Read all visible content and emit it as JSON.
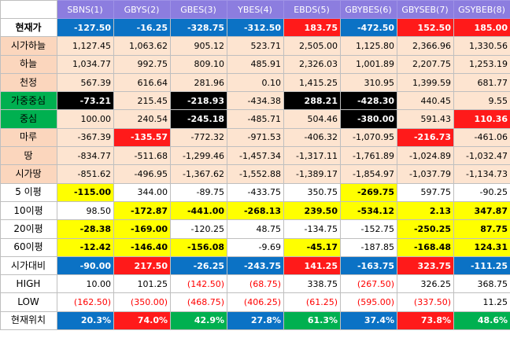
{
  "headers": [
    "SBNS(1)",
    "GBYS(2)",
    "GBES(3)",
    "YBES(4)",
    "EBDS(5)",
    "GBYBES(6)",
    "GBYSEB(7)",
    "GSYBEB(8)"
  ],
  "rows": [
    {
      "label": "현재가",
      "lstyle": "white",
      "lbold": true,
      "cells": [
        [
          "-127.50",
          "blue"
        ],
        [
          "-16.25",
          "blue"
        ],
        [
          "-328.75",
          "blue"
        ],
        [
          "-312.50",
          "blue"
        ],
        [
          "183.75",
          "red"
        ],
        [
          "-472.50",
          "blue"
        ],
        [
          "152.50",
          "red"
        ],
        [
          "185.00",
          "red"
        ]
      ]
    },
    {
      "label": "시가하늘",
      "lstyle": "peach",
      "cells": [
        [
          "1,127.45",
          "peach"
        ],
        [
          "1,063.62",
          "peach"
        ],
        [
          "905.12",
          "peach"
        ],
        [
          "523.71",
          "peach"
        ],
        [
          "2,505.00",
          "peach"
        ],
        [
          "1,125.80",
          "peach"
        ],
        [
          "2,366.96",
          "peach"
        ],
        [
          "1,330.56",
          "peach"
        ]
      ]
    },
    {
      "label": "하늘",
      "lstyle": "peach",
      "cells": [
        [
          "1,034.77",
          "peach"
        ],
        [
          "992.75",
          "peach"
        ],
        [
          "809.10",
          "peach"
        ],
        [
          "485.91",
          "peach"
        ],
        [
          "2,326.03",
          "peach"
        ],
        [
          "1,001.89",
          "peach"
        ],
        [
          "2,207.75",
          "peach"
        ],
        [
          "1,253.19",
          "peach"
        ]
      ]
    },
    {
      "label": "천정",
      "lstyle": "peach",
      "cells": [
        [
          "567.39",
          "peach"
        ],
        [
          "616.64",
          "peach"
        ],
        [
          "281.96",
          "peach"
        ],
        [
          "0.10",
          "peach"
        ],
        [
          "1,415.25",
          "peach"
        ],
        [
          "310.95",
          "peach"
        ],
        [
          "1,399.59",
          "peach"
        ],
        [
          "681.77",
          "peach"
        ]
      ]
    },
    {
      "label": "가중중심",
      "lstyle": "green",
      "cells": [
        [
          "-73.21",
          "black"
        ],
        [
          "215.45",
          "peach"
        ],
        [
          "-218.93",
          "black"
        ],
        [
          "-434.38",
          "peach"
        ],
        [
          "288.21",
          "black"
        ],
        [
          "-428.30",
          "black"
        ],
        [
          "440.45",
          "peach"
        ],
        [
          "9.55",
          "peach"
        ]
      ]
    },
    {
      "label": "중심",
      "lstyle": "green",
      "cells": [
        [
          "100.00",
          "peach"
        ],
        [
          "240.54",
          "peach"
        ],
        [
          "-245.18",
          "black"
        ],
        [
          "-485.71",
          "peach"
        ],
        [
          "504.46",
          "peach"
        ],
        [
          "-380.00",
          "black"
        ],
        [
          "591.43",
          "peach"
        ],
        [
          "110.36",
          "red"
        ]
      ]
    },
    {
      "label": "마루",
      "lstyle": "peach",
      "cells": [
        [
          "-367.39",
          "peach"
        ],
        [
          "-135.57",
          "red"
        ],
        [
          "-772.32",
          "peach"
        ],
        [
          "-971.53",
          "peach"
        ],
        [
          "-406.32",
          "peach"
        ],
        [
          "-1,070.95",
          "peach"
        ],
        [
          "-216.73",
          "red"
        ],
        [
          "-461.06",
          "peach"
        ]
      ]
    },
    {
      "label": "땅",
      "lstyle": "peach",
      "cells": [
        [
          "-834.77",
          "peach"
        ],
        [
          "-511.68",
          "peach"
        ],
        [
          "-1,299.46",
          "peach"
        ],
        [
          "-1,457.34",
          "peach"
        ],
        [
          "-1,317.11",
          "peach"
        ],
        [
          "-1,761.89",
          "peach"
        ],
        [
          "-1,024.89",
          "peach"
        ],
        [
          "-1,032.47",
          "peach"
        ]
      ]
    },
    {
      "label": "시가땅",
      "lstyle": "peach",
      "cells": [
        [
          "-851.62",
          "peach"
        ],
        [
          "-496.95",
          "peach"
        ],
        [
          "-1,367.62",
          "peach"
        ],
        [
          "-1,552.88",
          "peach"
        ],
        [
          "-1,389.17",
          "peach"
        ],
        [
          "-1,854.97",
          "peach"
        ],
        [
          "-1,037.79",
          "peach"
        ],
        [
          "-1,134.73",
          "peach"
        ]
      ]
    },
    {
      "label": "5 이평",
      "lstyle": "white",
      "cells": [
        [
          "-115.00",
          "yellow"
        ],
        [
          "344.00",
          "white"
        ],
        [
          "-89.75",
          "white"
        ],
        [
          "-433.75",
          "white"
        ],
        [
          "350.75",
          "white"
        ],
        [
          "-269.75",
          "yellow"
        ],
        [
          "597.75",
          "white"
        ],
        [
          "-90.25",
          "white"
        ]
      ]
    },
    {
      "label": "10이평",
      "lstyle": "white",
      "cells": [
        [
          "98.50",
          "white"
        ],
        [
          "-172.87",
          "yellow"
        ],
        [
          "-441.00",
          "yellow"
        ],
        [
          "-268.13",
          "yellow"
        ],
        [
          "239.50",
          "yellow"
        ],
        [
          "-534.12",
          "yellow"
        ],
        [
          "2.13",
          "yellow"
        ],
        [
          "347.87",
          "yellow"
        ]
      ]
    },
    {
      "label": "20이평",
      "lstyle": "white",
      "cells": [
        [
          "-28.38",
          "yellow"
        ],
        [
          "-169.00",
          "yellow"
        ],
        [
          "-120.25",
          "white"
        ],
        [
          "48.75",
          "white"
        ],
        [
          "-134.75",
          "white"
        ],
        [
          "-152.75",
          "white"
        ],
        [
          "-250.25",
          "yellow"
        ],
        [
          "87.75",
          "yellow"
        ]
      ]
    },
    {
      "label": "60이평",
      "lstyle": "white",
      "cells": [
        [
          "-12.42",
          "yellow"
        ],
        [
          "-146.40",
          "yellow"
        ],
        [
          "-156.08",
          "yellow"
        ],
        [
          "-9.69",
          "white"
        ],
        [
          "-45.17",
          "yellow"
        ],
        [
          "-187.85",
          "white"
        ],
        [
          "-168.48",
          "yellow"
        ],
        [
          "124.31",
          "yellow"
        ]
      ]
    },
    {
      "label": "시가대비",
      "lstyle": "white",
      "cells": [
        [
          "-90.00",
          "blue"
        ],
        [
          "217.50",
          "red"
        ],
        [
          "-26.25",
          "blue"
        ],
        [
          "-243.75",
          "blue"
        ],
        [
          "141.25",
          "red"
        ],
        [
          "-163.75",
          "blue"
        ],
        [
          "323.75",
          "red"
        ],
        [
          "-111.25",
          "blue"
        ]
      ]
    },
    {
      "label": "HIGH",
      "lstyle": "white",
      "cells": [
        [
          "10.00",
          "white"
        ],
        [
          "101.25",
          "white"
        ],
        [
          "(142.50)",
          "neg"
        ],
        [
          "(68.75)",
          "neg"
        ],
        [
          "338.75",
          "white"
        ],
        [
          "(267.50)",
          "neg"
        ],
        [
          "326.25",
          "white"
        ],
        [
          "368.75",
          "white"
        ]
      ]
    },
    {
      "label": "LOW",
      "lstyle": "white",
      "cells": [
        [
          "(162.50)",
          "neg"
        ],
        [
          "(350.00)",
          "neg"
        ],
        [
          "(468.75)",
          "neg"
        ],
        [
          "(406.25)",
          "neg"
        ],
        [
          "(61.25)",
          "neg"
        ],
        [
          "(595.00)",
          "neg"
        ],
        [
          "(337.50)",
          "neg"
        ],
        [
          "11.25",
          "white"
        ]
      ]
    },
    {
      "label": "현재위치",
      "lstyle": "white",
      "cells": [
        [
          "20.3%",
          "blue"
        ],
        [
          "74.0%",
          "red"
        ],
        [
          "42.9%",
          "green"
        ],
        [
          "27.8%",
          "blue"
        ],
        [
          "61.3%",
          "green"
        ],
        [
          "37.4%",
          "blue"
        ],
        [
          "73.8%",
          "red"
        ],
        [
          "48.6%",
          "green"
        ]
      ]
    }
  ],
  "colors": {
    "header_bg": "#8c7ddf",
    "blue": "#0b72c5",
    "red": "#ff1a1a",
    "yellow": "#ffff00",
    "green": "#00b050",
    "peach": "#fde4d0",
    "black": "#000000"
  }
}
